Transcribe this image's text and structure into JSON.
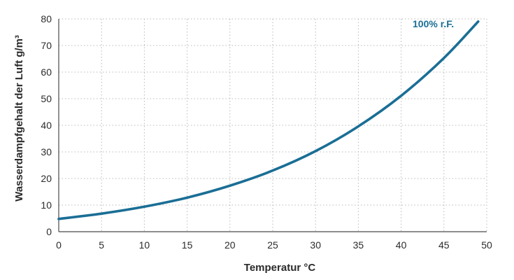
{
  "chart_data": {
    "type": "line",
    "title": "",
    "xlabel": "Temperatur °C",
    "ylabel": "Wasserdampfgehalt der Luft g/m³",
    "xlim": [
      0,
      50
    ],
    "ylim": [
      0,
      80
    ],
    "x_ticks": [
      0,
      5,
      10,
      15,
      20,
      25,
      30,
      35,
      40,
      45,
      50
    ],
    "y_ticks": [
      0,
      10,
      20,
      30,
      40,
      50,
      60,
      70,
      80
    ],
    "grid": true,
    "series": [
      {
        "name": "100% r.F.",
        "color": "#1a6e95",
        "x": [
          0,
          5,
          10,
          15,
          20,
          25,
          30,
          35,
          40,
          45,
          49
        ],
        "y": [
          4.8,
          6.8,
          9.4,
          12.8,
          17.3,
          23.0,
          30.3,
          39.6,
          51.1,
          65.3,
          79.0
        ]
      }
    ]
  }
}
